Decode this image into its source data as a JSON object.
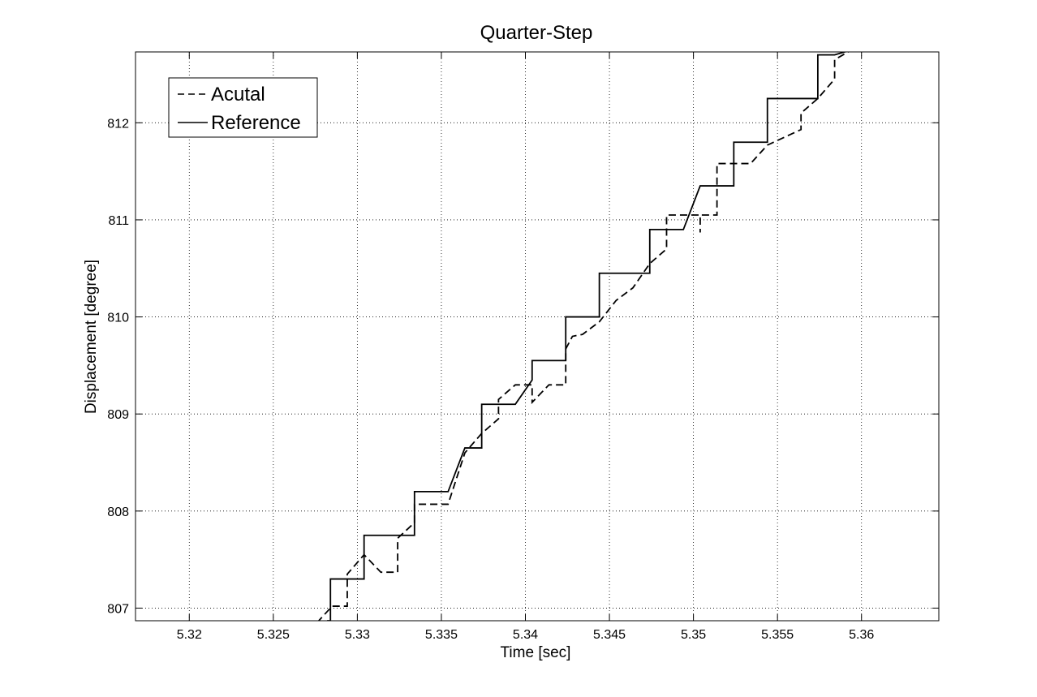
{
  "chart_data": {
    "type": "line",
    "title": "Quarter-Step",
    "xlabel": "Time [sec]",
    "ylabel": "Displacement [degree]",
    "xlim": [
      5.3168,
      5.3646
    ],
    "ylim": [
      806.87,
      812.73
    ],
    "xticks": [
      5.32,
      5.325,
      5.33,
      5.335,
      5.34,
      5.345,
      5.35,
      5.355,
      5.36
    ],
    "xtick_labels": [
      "5.32",
      "5.325",
      "5.33",
      "5.335",
      "5.34",
      "5.345",
      "5.35",
      "5.355",
      "5.36"
    ],
    "yticks": [
      807,
      808,
      809,
      810,
      811,
      812
    ],
    "ytick_labels": [
      "807",
      "808",
      "809",
      "810",
      "811",
      "812"
    ],
    "grid": true,
    "legend_position": "top-left",
    "series": [
      {
        "name": "Acutal",
        "style": "dashed",
        "color": "#000000",
        "x": [
          5.3276,
          5.3285,
          5.3294,
          5.3294,
          5.3304,
          5.3314,
          5.3324,
          5.3324,
          5.3334,
          5.3334,
          5.3354,
          5.3364,
          5.3364,
          5.3374,
          5.3384,
          5.3384,
          5.3394,
          5.3404,
          5.3404,
          5.3414,
          5.3424,
          5.3424,
          5.3428,
          5.3434,
          5.3444,
          5.3454,
          5.3454,
          5.3464,
          5.3474,
          5.3484,
          5.3484,
          5.3494,
          5.3504,
          5.3504,
          5.3504,
          5.3514,
          5.3514,
          5.3534,
          5.3544,
          5.3564,
          5.3564,
          5.3574,
          5.3584,
          5.3584,
          5.3594
        ],
        "y": [
          806.85,
          807.02,
          807.02,
          807.35,
          807.55,
          807.37,
          807.37,
          807.72,
          807.88,
          808.07,
          808.07,
          808.6,
          808.6,
          808.8,
          808.95,
          809.15,
          809.3,
          809.3,
          809.12,
          809.3,
          809.3,
          809.67,
          809.8,
          809.82,
          809.95,
          810.17,
          810.17,
          810.3,
          810.55,
          810.7,
          811.05,
          811.05,
          811.05,
          810.87,
          811.05,
          811.05,
          811.58,
          811.58,
          811.77,
          811.93,
          812.1,
          812.25,
          812.45,
          812.65,
          812.75
        ]
      },
      {
        "name": "Reference",
        "style": "solid",
        "color": "#000000",
        "x": [
          5.3282,
          5.3284,
          5.3284,
          5.3304,
          5.3304,
          5.3334,
          5.3334,
          5.3354,
          5.3364,
          5.3374,
          5.3374,
          5.3394,
          5.3404,
          5.3404,
          5.3424,
          5.3424,
          5.3444,
          5.3444,
          5.3474,
          5.3474,
          5.3494,
          5.3504,
          5.3504,
          5.3524,
          5.3524,
          5.3544,
          5.3544,
          5.3574,
          5.3574,
          5.3584,
          5.3594
        ],
        "y": [
          806.87,
          806.87,
          807.3,
          807.3,
          807.75,
          807.75,
          808.2,
          808.2,
          808.65,
          808.65,
          809.1,
          809.1,
          809.35,
          809.55,
          809.55,
          810.0,
          810.0,
          810.45,
          810.45,
          810.9,
          810.9,
          811.35,
          811.35,
          811.35,
          811.8,
          811.8,
          812.25,
          812.25,
          812.7,
          812.7,
          812.75
        ]
      }
    ]
  }
}
